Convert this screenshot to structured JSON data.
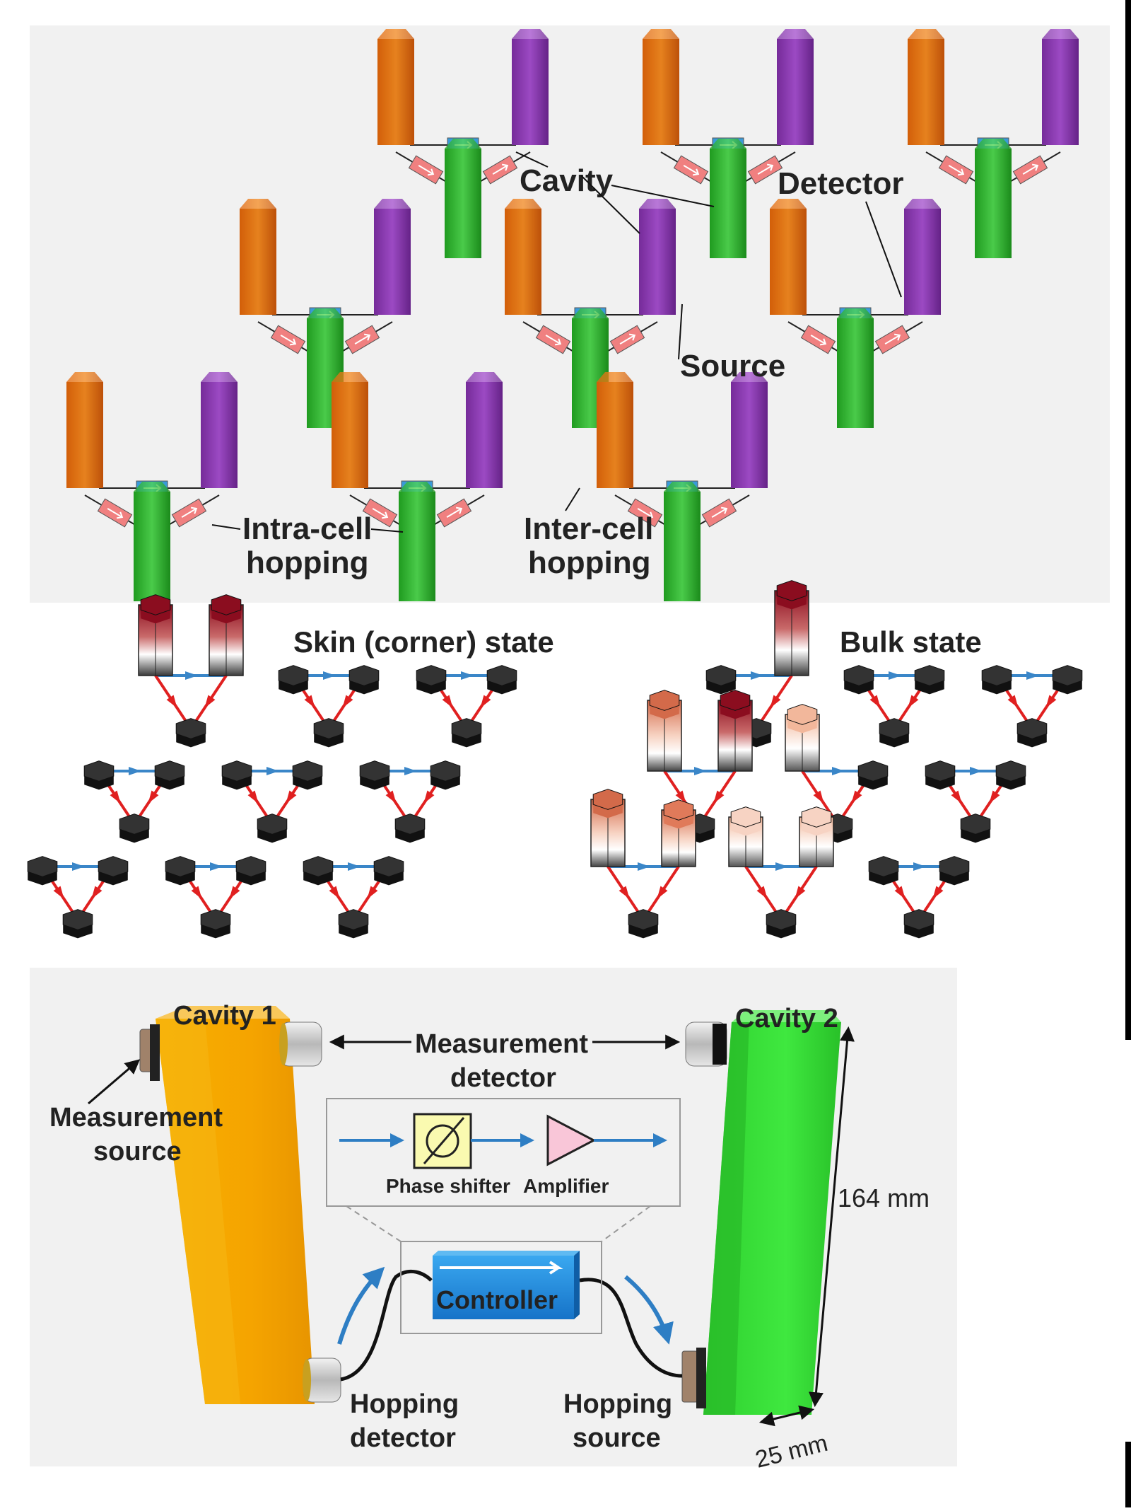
{
  "panel_a": {
    "labels": {
      "cavity": "Cavity",
      "detector": "Detector",
      "source": "Source",
      "intra_line1": "Intra-cell",
      "intra_line2": "hopping",
      "inter_line1": "Inter-cell",
      "inter_line2": "hopping"
    },
    "colors": {
      "orange": "#f07a14",
      "purple": "#9b3fc0",
      "green": "#3cc23c",
      "red_coupler": "#f08080",
      "blue_coupler": "#3a9ad8"
    }
  },
  "panel_b": {
    "left_title": "Skin (corner) state",
    "right_title": "Bulk state",
    "colors": {
      "red_arrow": "#e02020",
      "blue_arrow": "#3a86c8",
      "hex_dark": "#333333",
      "hex_peak": "#8b0d1f"
    }
  },
  "panel_c": {
    "cavity1": "Cavity 1",
    "cavity2": "Cavity 2",
    "measurement_detector_line1": "Measurement",
    "measurement_detector_line2": "detector",
    "measurement_source_line1": "Measurement",
    "measurement_source_line2": "source",
    "phase_shifter": "Phase shifter",
    "amplifier": "Amplifier",
    "controller": "Controller",
    "hopping_detector_line1": "Hopping",
    "hopping_detector_line2": "detector",
    "hopping_source_line1": "Hopping",
    "hopping_source_line2": "source",
    "height_dim": "164 mm",
    "width_dim": "25 mm",
    "colors": {
      "cavity1": "#f5a500",
      "cavity2": "#33dd33",
      "controller": "#1e90e0"
    }
  }
}
